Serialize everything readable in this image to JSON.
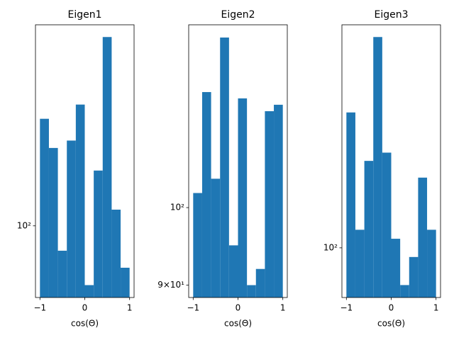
{
  "chart_data": [
    {
      "type": "histogram",
      "title": "Eigen1",
      "xlabel": "cos(Θ)",
      "color": "#1f77b4",
      "log_y": true,
      "bins": [
        -1,
        -0.8,
        -0.6,
        -0.4,
        -0.2,
        0,
        0.2,
        0.4,
        0.6,
        0.8,
        1
      ],
      "values": [
        114,
        110,
        97,
        111,
        116,
        93,
        107,
        126,
        102,
        95
      ],
      "xlim": [
        -1.1,
        1.1
      ],
      "xticks": [
        {
          "value": -1,
          "label": "−1"
        },
        0,
        1
      ],
      "ylim": [
        91.6,
        127.9
      ],
      "yticks": [
        {
          "value": 100,
          "label": "10²"
        }
      ]
    },
    {
      "type": "histogram",
      "title": "Eigen2",
      "xlabel": "cos(Θ)",
      "color": "#1f77b4",
      "log_y": true,
      "bins": [
        -1,
        -0.8,
        -0.6,
        -0.4,
        -0.2,
        0,
        0.2,
        0.4,
        0.6,
        0.8,
        1
      ],
      "values": [
        102,
        117,
        104,
        126,
        95,
        116,
        90,
        92,
        114,
        115
      ],
      "xlim": [
        -1.1,
        1.1
      ],
      "xticks": [
        {
          "value": -1,
          "label": "−1"
        },
        0,
        1
      ],
      "ylim": [
        88.5,
        128.2
      ],
      "yticks": [
        {
          "value": 90,
          "label": "9×10¹"
        },
        {
          "value": 100,
          "label": "10²"
        }
      ]
    },
    {
      "type": "histogram",
      "title": "Eigen3",
      "xlabel": "cos(Θ)",
      "color": "#1f77b4",
      "log_y": true,
      "bins": [
        -1,
        -0.8,
        -0.6,
        -0.4,
        -0.2,
        0,
        0.2,
        0.4,
        0.6,
        0.8,
        1
      ],
      "values": [
        116,
        102,
        110,
        126,
        111,
        101,
        96,
        99,
        108,
        102
      ],
      "xlim": [
        -1.1,
        1.1
      ],
      "xticks": [
        {
          "value": -1,
          "label": "−1"
        },
        0,
        1
      ],
      "ylim": [
        94.7,
        127.7
      ],
      "yticks": [
        {
          "value": 100,
          "label": "10²"
        }
      ]
    }
  ]
}
